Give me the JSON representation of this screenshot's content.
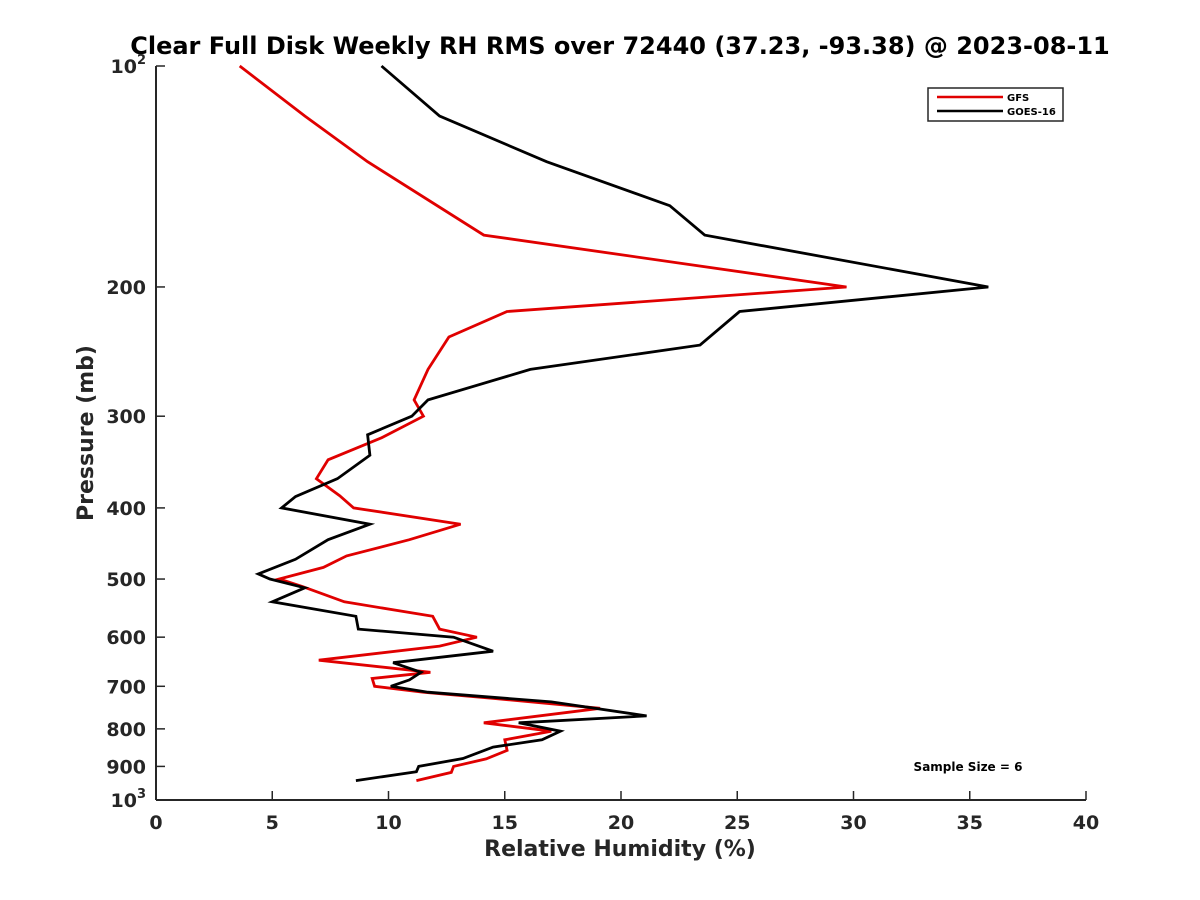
{
  "chart_data": {
    "type": "line",
    "title": "Clear Full Disk Weekly RH RMS over 72440 (37.23, -93.38) @ 2023-08-11",
    "xlabel": "Relative Humidity (%)",
    "ylabel": "Pressure (mb)",
    "xlim": [
      0,
      40
    ],
    "ylim": [
      100,
      1000
    ],
    "y_scale": "log",
    "y_reversed": true,
    "grid": false,
    "legend_position": "top-right",
    "x_ticks": [
      "0",
      "5",
      "10",
      "15",
      "20",
      "25",
      "30",
      "35",
      "40"
    ],
    "y_ticks": [
      {
        "value": 100,
        "base": "10",
        "sup": "2"
      },
      {
        "value": 200,
        "base": "200",
        "sup": ""
      },
      {
        "value": 300,
        "base": "300",
        "sup": ""
      },
      {
        "value": 400,
        "base": "400",
        "sup": ""
      },
      {
        "value": 500,
        "base": "500",
        "sup": ""
      },
      {
        "value": 600,
        "base": "600",
        "sup": ""
      },
      {
        "value": 700,
        "base": "700",
        "sup": ""
      },
      {
        "value": 800,
        "base": "800",
        "sup": ""
      },
      {
        "value": 900,
        "base": "900",
        "sup": ""
      },
      {
        "value": 1000,
        "base": "10",
        "sup": "3"
      }
    ],
    "annotation": "Sample Size = 6",
    "series": [
      {
        "name": "GFS",
        "color": "#e00000",
        "points": [
          [
            3.6,
            100
          ],
          [
            6.4,
            117
          ],
          [
            9.1,
            135
          ],
          [
            14.1,
            170
          ],
          [
            29.7,
            200
          ],
          [
            15.1,
            216
          ],
          [
            12.6,
            234
          ],
          [
            11.7,
            259
          ],
          [
            11.1,
            285
          ],
          [
            11.5,
            300
          ],
          [
            9.7,
            321
          ],
          [
            7.4,
            344
          ],
          [
            6.9,
            365
          ],
          [
            7.9,
            385
          ],
          [
            8.5,
            400
          ],
          [
            13.1,
            421
          ],
          [
            10.9,
            442
          ],
          [
            8.2,
            465
          ],
          [
            7.2,
            482
          ],
          [
            5.3,
            500
          ],
          [
            6.3,
            512
          ],
          [
            8.1,
            537
          ],
          [
            11.9,
            562
          ],
          [
            12.2,
            585
          ],
          [
            13.8,
            600
          ],
          [
            12.2,
            617
          ],
          [
            7.0,
            645
          ],
          [
            11.8,
            670
          ],
          [
            9.3,
            683
          ],
          [
            9.4,
            700
          ],
          [
            11.5,
            713
          ],
          [
            14.5,
            727
          ],
          [
            19.1,
            750
          ],
          [
            14.1,
            785
          ],
          [
            17.0,
            806
          ],
          [
            15.0,
            828
          ],
          [
            15.1,
            856
          ],
          [
            14.2,
            879
          ],
          [
            12.8,
            900
          ],
          [
            12.7,
            917
          ],
          [
            11.2,
            941
          ]
        ]
      },
      {
        "name": "GOES-16",
        "color": "#000000",
        "points": [
          [
            9.7,
            100
          ],
          [
            12.2,
            117
          ],
          [
            16.8,
            135
          ],
          [
            22.1,
            155
          ],
          [
            23.6,
            170
          ],
          [
            35.8,
            200
          ],
          [
            25.1,
            216
          ],
          [
            23.4,
            240
          ],
          [
            16.1,
            259
          ],
          [
            11.7,
            285
          ],
          [
            11.0,
            300
          ],
          [
            9.1,
            318
          ],
          [
            9.2,
            339
          ],
          [
            7.8,
            365
          ],
          [
            6.0,
            386
          ],
          [
            5.4,
            400
          ],
          [
            9.2,
            421
          ],
          [
            7.4,
            442
          ],
          [
            6.0,
            470
          ],
          [
            4.4,
            492
          ],
          [
            4.9,
            500
          ],
          [
            6.4,
            514
          ],
          [
            5.0,
            537
          ],
          [
            8.6,
            562
          ],
          [
            8.7,
            585
          ],
          [
            12.8,
            600
          ],
          [
            14.5,
            627
          ],
          [
            10.2,
            650
          ],
          [
            11.4,
            670
          ],
          [
            10.9,
            686
          ],
          [
            10.1,
            700
          ],
          [
            11.7,
            713
          ],
          [
            17.0,
            735
          ],
          [
            21.1,
            768
          ],
          [
            15.6,
            785
          ],
          [
            17.4,
            806
          ],
          [
            16.6,
            828
          ],
          [
            14.5,
            847
          ],
          [
            13.2,
            878
          ],
          [
            11.3,
            900
          ],
          [
            11.2,
            915
          ],
          [
            8.6,
            941
          ]
        ]
      }
    ]
  }
}
